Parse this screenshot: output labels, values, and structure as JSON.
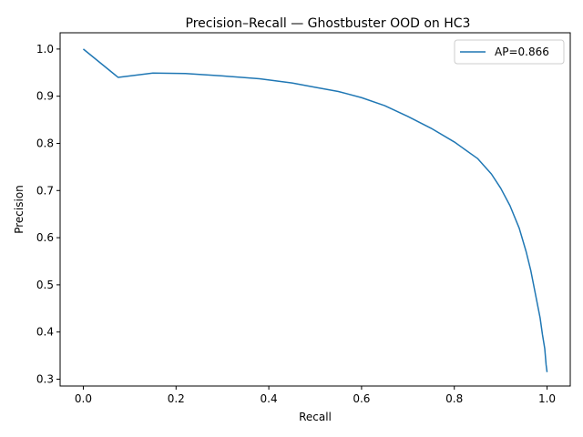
{
  "chart_data": {
    "type": "line",
    "title": "Precision–Recall — Ghostbuster OOD on HC3",
    "xlabel": "Recall",
    "ylabel": "Precision",
    "xlim": [
      -0.05,
      1.05
    ],
    "ylim": [
      0.2855,
      1.0345
    ],
    "xticks": [
      "0.0",
      "0.2",
      "0.4",
      "0.6",
      "0.8",
      "1.0"
    ],
    "yticks": [
      "0.3",
      "0.4",
      "0.5",
      "0.6",
      "0.7",
      "0.8",
      "0.9",
      "1.0"
    ],
    "grid": false,
    "legend_position": "top-right",
    "series": [
      {
        "name": "AP=0.866",
        "color": "#1f77b4",
        "x": [
          0.0,
          0.075,
          0.15,
          0.22,
          0.3,
          0.38,
          0.45,
          0.5,
          0.55,
          0.6,
          0.65,
          0.7,
          0.75,
          0.8,
          0.85,
          0.88,
          0.9,
          0.92,
          0.94,
          0.955,
          0.965,
          0.975,
          0.985,
          0.99,
          0.995,
          0.998,
          1.0
        ],
        "y": [
          1.0,
          0.94,
          0.949,
          0.948,
          0.943,
          0.937,
          0.928,
          0.919,
          0.91,
          0.897,
          0.88,
          0.857,
          0.832,
          0.803,
          0.768,
          0.735,
          0.705,
          0.668,
          0.62,
          0.57,
          0.53,
          0.48,
          0.43,
          0.395,
          0.365,
          0.33,
          0.315
        ]
      }
    ]
  }
}
